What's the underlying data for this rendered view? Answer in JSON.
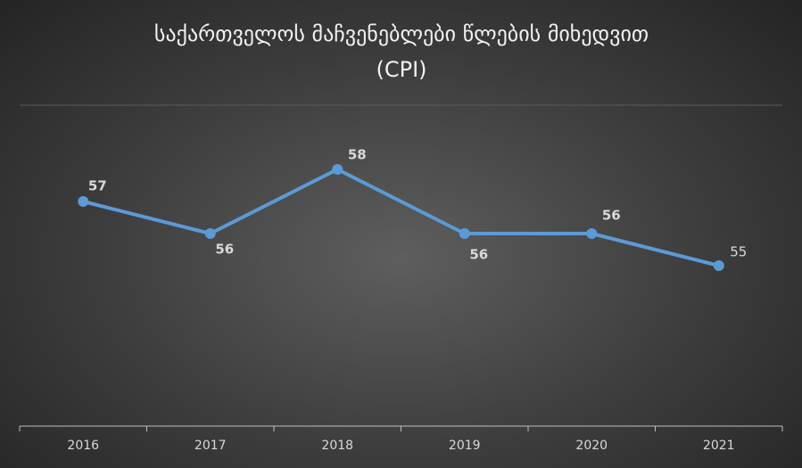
{
  "chart_data": {
    "type": "line",
    "title": "საქართველოს მაჩვენებლები წლების მიხედვით (CPI)",
    "categories": [
      "2016",
      "2017",
      "2018",
      "2019",
      "2020",
      "2021"
    ],
    "values": [
      57,
      56,
      58,
      56,
      56,
      55
    ],
    "color": "#5b9bd5",
    "ylim": [
      50,
      60
    ]
  }
}
